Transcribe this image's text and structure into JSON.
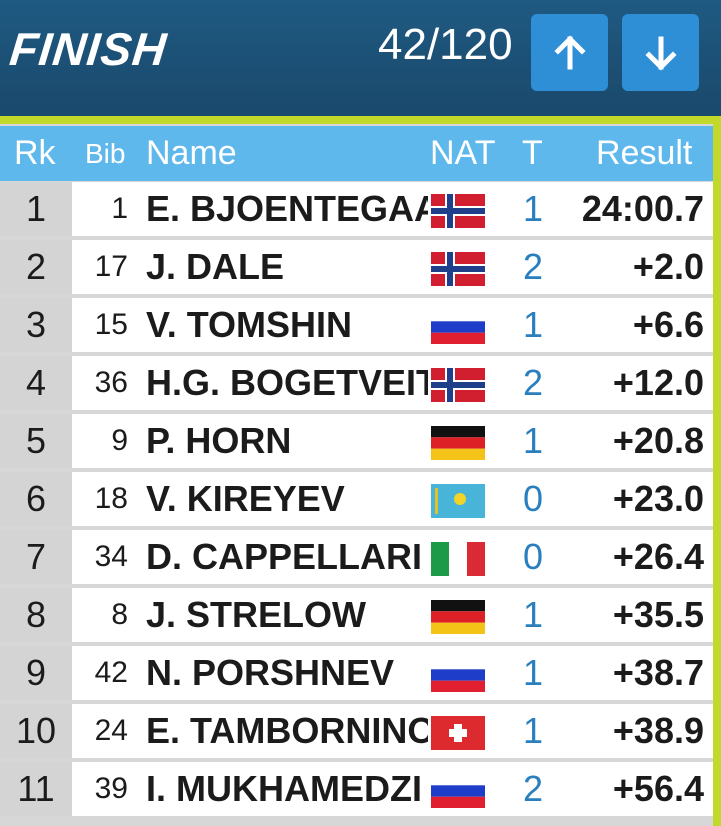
{
  "header": {
    "title": "FINISH",
    "count": "42/120",
    "up_button": "up-arrow",
    "down_button": "down-arrow"
  },
  "columns": {
    "rank": "Rk",
    "bib": "Bib",
    "name": "Name",
    "nat": "NAT",
    "t": "T",
    "result": "Result"
  },
  "rows": [
    {
      "rank": "1",
      "bib": "1",
      "name": "E. BJOENTEGAARD",
      "flag": "NOR",
      "t": "1",
      "result": "24:00.7"
    },
    {
      "rank": "2",
      "bib": "17",
      "name": "J. DALE",
      "flag": "NOR",
      "t": "2",
      "result": "+2.0"
    },
    {
      "rank": "3",
      "bib": "15",
      "name": "V. TOMSHIN",
      "flag": "RUS",
      "t": "1",
      "result": "+6.6"
    },
    {
      "rank": "4",
      "bib": "36",
      "name": "H.G. BOGETVEIT",
      "flag": "NOR",
      "t": "2",
      "result": "+12.0"
    },
    {
      "rank": "5",
      "bib": "9",
      "name": "P. HORN",
      "flag": "GER",
      "t": "1",
      "result": "+20.8"
    },
    {
      "rank": "6",
      "bib": "18",
      "name": "V. KIREYEV",
      "flag": "KAZ",
      "t": "0",
      "result": "+23.0"
    },
    {
      "rank": "7",
      "bib": "34",
      "name": "D. CAPPELLARI",
      "flag": "ITA",
      "t": "0",
      "result": "+26.4"
    },
    {
      "rank": "8",
      "bib": "8",
      "name": "J. STRELOW",
      "flag": "GER",
      "t": "1",
      "result": "+35.5"
    },
    {
      "rank": "9",
      "bib": "42",
      "name": "N. PORSHNEV",
      "flag": "RUS",
      "t": "1",
      "result": "+38.7"
    },
    {
      "rank": "10",
      "bib": "24",
      "name": "E. TAMBORNINO",
      "flag": "SUI",
      "t": "1",
      "result": "+38.9"
    },
    {
      "rank": "11",
      "bib": "39",
      "name": "I. MUKHAMEDZI",
      "flag": "RUS",
      "t": "2",
      "result": "+56.4"
    }
  ],
  "colors": {
    "header_bg": "#1c4f74",
    "accent": "#c2d92b",
    "column_header": "#5fb8ec",
    "button": "#2f8fd6",
    "t_text": "#2a7fbf"
  }
}
